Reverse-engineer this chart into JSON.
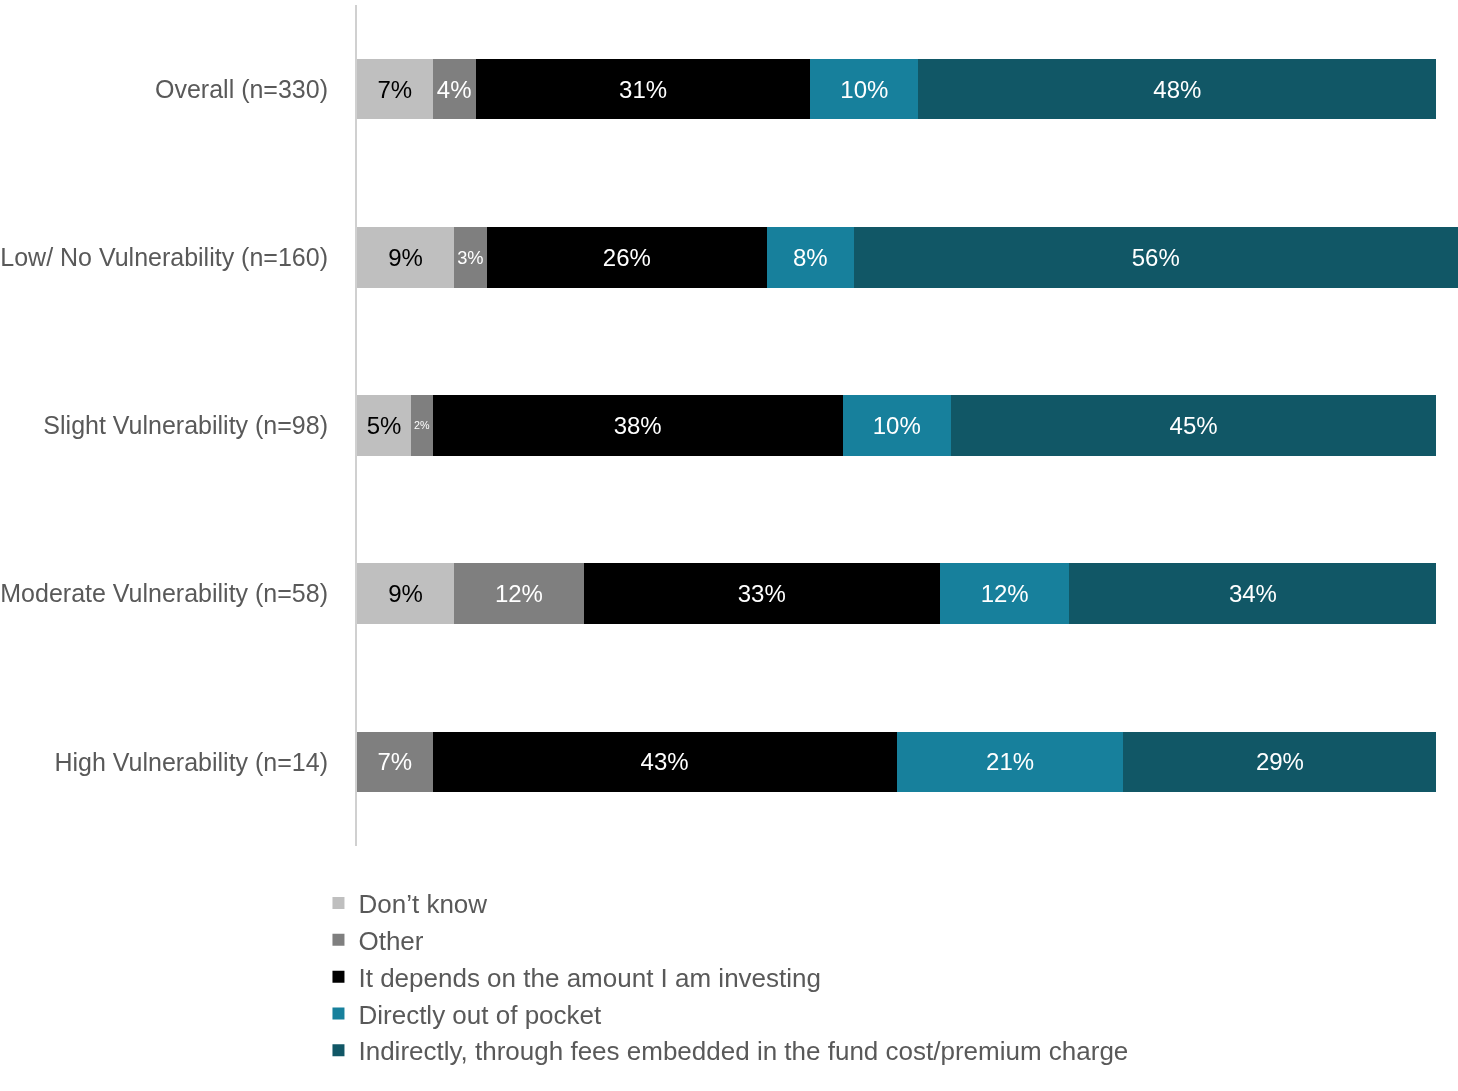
{
  "chart_data": {
    "type": "bar",
    "orientation": "horizontal",
    "stacked": true,
    "legend": "bottom",
    "categories": [
      "Overall (n=330)",
      "Low/ No Vulnerability (n=160)",
      "Slight Vulnerability (n=98)",
      "Moderate Vulnerability (n=58)",
      "High Vulnerability (n=14)"
    ],
    "series": [
      {
        "name": "Don’t know",
        "color": "#bfbfbf",
        "values": [
          7,
          9,
          5,
          9,
          null
        ],
        "value_labels": [
          "7%",
          "9%",
          "5%",
          "9%",
          null
        ]
      },
      {
        "name": "Other",
        "color": "#7f7f7f",
        "values": [
          4,
          3,
          2,
          12,
          7
        ],
        "value_labels": [
          "4%",
          "3%",
          "2%",
          "12%",
          "7%"
        ]
      },
      {
        "name": "It depends on the amount I am investing",
        "color": "#000000",
        "values": [
          31,
          26,
          38,
          33,
          43
        ],
        "value_labels": [
          "31%",
          "26%",
          "38%",
          "33%",
          "43%"
        ]
      },
      {
        "name": "Directly out of pocket",
        "color": "#17809c",
        "values": [
          10,
          8,
          10,
          12,
          21
        ],
        "value_labels": [
          "10%",
          "8%",
          "10%",
          "12%",
          "21%"
        ]
      },
      {
        "name": "Indirectly, through fees embedded in the fund cost/premium charge",
        "color": "#115766",
        "values": [
          48,
          56,
          45,
          34,
          29
        ],
        "value_labels": [
          "48%",
          "56%",
          "45%",
          "34%",
          "29%"
        ]
      }
    ]
  }
}
